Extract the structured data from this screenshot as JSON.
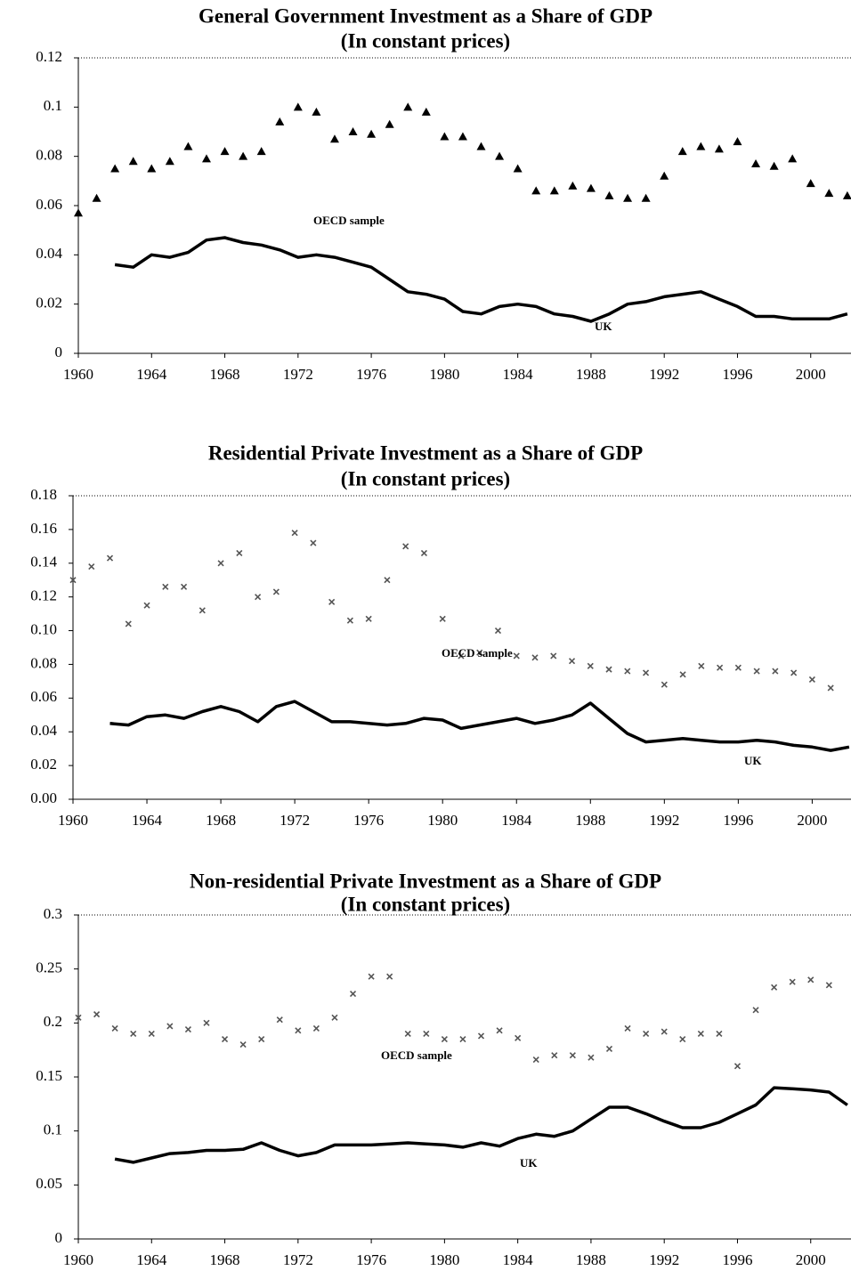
{
  "chart_data": [
    {
      "type": "line",
      "title": "General Government Investment as a Share of GDP",
      "subtitle": "(In constant prices)",
      "xlim": [
        1960,
        2002.2
      ],
      "ylim": [
        0,
        0.12
      ],
      "xticks": [
        1960,
        1964,
        1968,
        1972,
        1976,
        1980,
        1984,
        1988,
        1992,
        1996,
        2000
      ],
      "yticks": [
        0,
        0.02,
        0.04,
        0.06,
        0.08,
        0.1,
        0.12
      ],
      "series": [
        {
          "name": "UK",
          "color": "#000000",
          "x": [
            1962,
            1963,
            1964,
            1965,
            1966,
            1967,
            1968,
            1969,
            1970,
            1971,
            1972,
            1973,
            1974,
            1975,
            1976,
            1977,
            1978,
            1979,
            1980,
            1981,
            1982,
            1983,
            1984,
            1985,
            1986,
            1987,
            1988,
            1989,
            1990,
            1991,
            1992,
            1993,
            1994,
            1995,
            1996,
            1997,
            1998,
            1999,
            2000,
            2001,
            2002
          ],
          "values": [
            0.036,
            0.035,
            0.04,
            0.039,
            0.041,
            0.046,
            0.047,
            0.045,
            0.044,
            0.042,
            0.039,
            0.04,
            0.039,
            0.037,
            0.035,
            0.03,
            0.025,
            0.024,
            0.022,
            0.017,
            0.016,
            0.019,
            0.02,
            0.019,
            0.016,
            0.015,
            0.013,
            0.016,
            0.02,
            0.021,
            0.023,
            0.024,
            0.025,
            0.022,
            0.019,
            0.015,
            0.015,
            0.014,
            0.014,
            0.014,
            0.016
          ]
        },
        {
          "name": "OECD sample",
          "color": "#000000",
          "marker": "triangle",
          "x": [
            1960,
            1961,
            1962,
            1963,
            1964,
            1965,
            1966,
            1967,
            1968,
            1969,
            1970,
            1971,
            1972,
            1973,
            1974,
            1975,
            1976,
            1977,
            1978,
            1979,
            1980,
            1981,
            1982,
            1983,
            1984,
            1985,
            1986,
            1987,
            1988,
            1989,
            1990,
            1991,
            1992,
            1993,
            1994,
            1995,
            1996,
            1997,
            1998,
            1999,
            2000,
            2001,
            2002
          ],
          "values": [
            0.057,
            0.063,
            0.075,
            0.078,
            0.075,
            0.078,
            0.084,
            0.079,
            0.082,
            0.08,
            0.082,
            0.094,
            0.1,
            0.098,
            0.087,
            0.09,
            0.089,
            0.093,
            0.1,
            0.098,
            0.088,
            0.088,
            0.084,
            0.08,
            0.075,
            0.066,
            0.066,
            0.068,
            0.067,
            0.064,
            0.063,
            0.063,
            0.072,
            0.082,
            0.084,
            0.083,
            0.086,
            0.077,
            0.076,
            0.079,
            0.069,
            0.065,
            0.064
          ]
        }
      ]
    },
    {
      "type": "line",
      "title": "Residential Private Investment as a Share of GDP",
      "subtitle": "(In constant prices)",
      "xlim": [
        1960,
        2002.1
      ],
      "ylim": [
        0,
        0.18
      ],
      "xticks": [
        1960,
        1964,
        1968,
        1972,
        1976,
        1980,
        1984,
        1988,
        1992,
        1996,
        2000
      ],
      "yticks": [
        {
          "value": 0,
          "label": "0.00"
        },
        0.02,
        0.04,
        0.06,
        0.08,
        {
          "value": 0.1,
          "label": "0.10"
        },
        0.12,
        0.14,
        0.16,
        0.18
      ],
      "series": [
        {
          "name": "UK",
          "color": "#000000",
          "x": [
            1962,
            1963,
            1964,
            1965,
            1966,
            1967,
            1968,
            1969,
            1970,
            1971,
            1972,
            1973,
            1974,
            1975,
            1976,
            1977,
            1978,
            1979,
            1980,
            1981,
            1982,
            1983,
            1984,
            1985,
            1986,
            1987,
            1988,
            1989,
            1990,
            1991,
            1992,
            1993,
            1994,
            1995,
            1996,
            1997,
            1998,
            1999,
            2000,
            2001,
            2002
          ],
          "values": [
            0.045,
            0.044,
            0.049,
            0.05,
            0.048,
            0.052,
            0.055,
            0.052,
            0.046,
            0.055,
            0.058,
            0.052,
            0.046,
            0.046,
            0.045,
            0.044,
            0.045,
            0.048,
            0.047,
            0.042,
            0.044,
            0.046,
            0.048,
            0.045,
            0.047,
            0.05,
            0.057,
            0.048,
            0.039,
            0.034,
            0.035,
            0.036,
            0.035,
            0.034,
            0.034,
            0.035,
            0.034,
            0.032,
            0.031,
            0.029,
            0.031
          ]
        },
        {
          "name": "OECD sample",
          "color": "#555555",
          "marker": "x",
          "x": [
            1960,
            1961,
            1962,
            1963,
            1964,
            1965,
            1966,
            1967,
            1968,
            1969,
            1970,
            1971,
            1972,
            1973,
            1974,
            1975,
            1976,
            1977,
            1978,
            1979,
            1980,
            1981,
            1982,
            1983,
            1984,
            1985,
            1986,
            1987,
            1988,
            1989,
            1990,
            1991,
            1992,
            1993,
            1994,
            1995,
            1996,
            1997,
            1998,
            1999,
            2000,
            2001
          ],
          "values": [
            0.13,
            0.138,
            0.143,
            0.104,
            0.115,
            0.126,
            0.126,
            0.112,
            0.14,
            0.146,
            0.12,
            0.123,
            0.158,
            0.152,
            0.117,
            0.106,
            0.107,
            0.13,
            0.15,
            0.146,
            0.107,
            0.085,
            0.087,
            0.1,
            0.085,
            0.084,
            0.085,
            0.082,
            0.079,
            0.077,
            0.076,
            0.075,
            0.068,
            0.074,
            0.079,
            0.078,
            0.078,
            0.076,
            0.076,
            0.075,
            0.071,
            0.066
          ]
        }
      ]
    },
    {
      "type": "line",
      "title": "Non-residential Private Investment as a Share of GDP",
      "subtitle": "(In constant prices)",
      "xlim": [
        1960,
        2002.2
      ],
      "ylim": [
        0,
        0.3
      ],
      "xticks": [
        1960,
        1964,
        1968,
        1972,
        1976,
        1980,
        1984,
        1988,
        1992,
        1996,
        2000
      ],
      "yticks": [
        0,
        0.05,
        0.1,
        0.15,
        0.2,
        0.25,
        0.3
      ],
      "series": [
        {
          "name": "UK",
          "color": "#000000",
          "x": [
            1962,
            1963,
            1964,
            1965,
            1966,
            1967,
            1968,
            1969,
            1970,
            1971,
            1972,
            1973,
            1974,
            1975,
            1976,
            1977,
            1978,
            1979,
            1980,
            1981,
            1982,
            1983,
            1984,
            1985,
            1986,
            1987,
            1988,
            1989,
            1990,
            1991,
            1992,
            1993,
            1994,
            1995,
            1996,
            1997,
            1998,
            1999,
            2000,
            2001,
            2002
          ],
          "values": [
            0.074,
            0.071,
            0.075,
            0.079,
            0.08,
            0.082,
            0.082,
            0.083,
            0.089,
            0.082,
            0.077,
            0.08,
            0.087,
            0.087,
            0.087,
            0.088,
            0.089,
            0.088,
            0.087,
            0.085,
            0.089,
            0.086,
            0.093,
            0.097,
            0.095,
            0.1,
            0.111,
            0.122,
            0.122,
            0.116,
            0.109,
            0.103,
            0.103,
            0.108,
            0.116,
            0.124,
            0.14,
            0.139,
            0.138,
            0.136,
            0.124
          ]
        },
        {
          "name": "OECD sample",
          "color": "#555555",
          "marker": "x",
          "x": [
            1960,
            1961,
            1962,
            1963,
            1964,
            1965,
            1966,
            1967,
            1968,
            1969,
            1970,
            1971,
            1972,
            1973,
            1974,
            1975,
            1976,
            1977,
            1978,
            1979,
            1980,
            1981,
            1982,
            1983,
            1984,
            1985,
            1986,
            1987,
            1988,
            1989,
            1990,
            1991,
            1992,
            1993,
            1994,
            1995,
            1996,
            1997,
            1998,
            1999,
            2000,
            2001
          ],
          "values": [
            0.205,
            0.208,
            0.195,
            0.19,
            0.19,
            0.197,
            0.194,
            0.2,
            0.185,
            0.18,
            0.185,
            0.203,
            0.193,
            0.195,
            0.205,
            0.227,
            0.243,
            0.243,
            0.19,
            0.19,
            0.185,
            0.185,
            0.188,
            0.193,
            0.186,
            0.166,
            0.17,
            0.17,
            0.168,
            0.176,
            0.195,
            0.19,
            0.192,
            0.185,
            0.19,
            0.19,
            0.16,
            0.212,
            0.233,
            0.238,
            0.24,
            0.235
          ]
        }
      ]
    }
  ]
}
